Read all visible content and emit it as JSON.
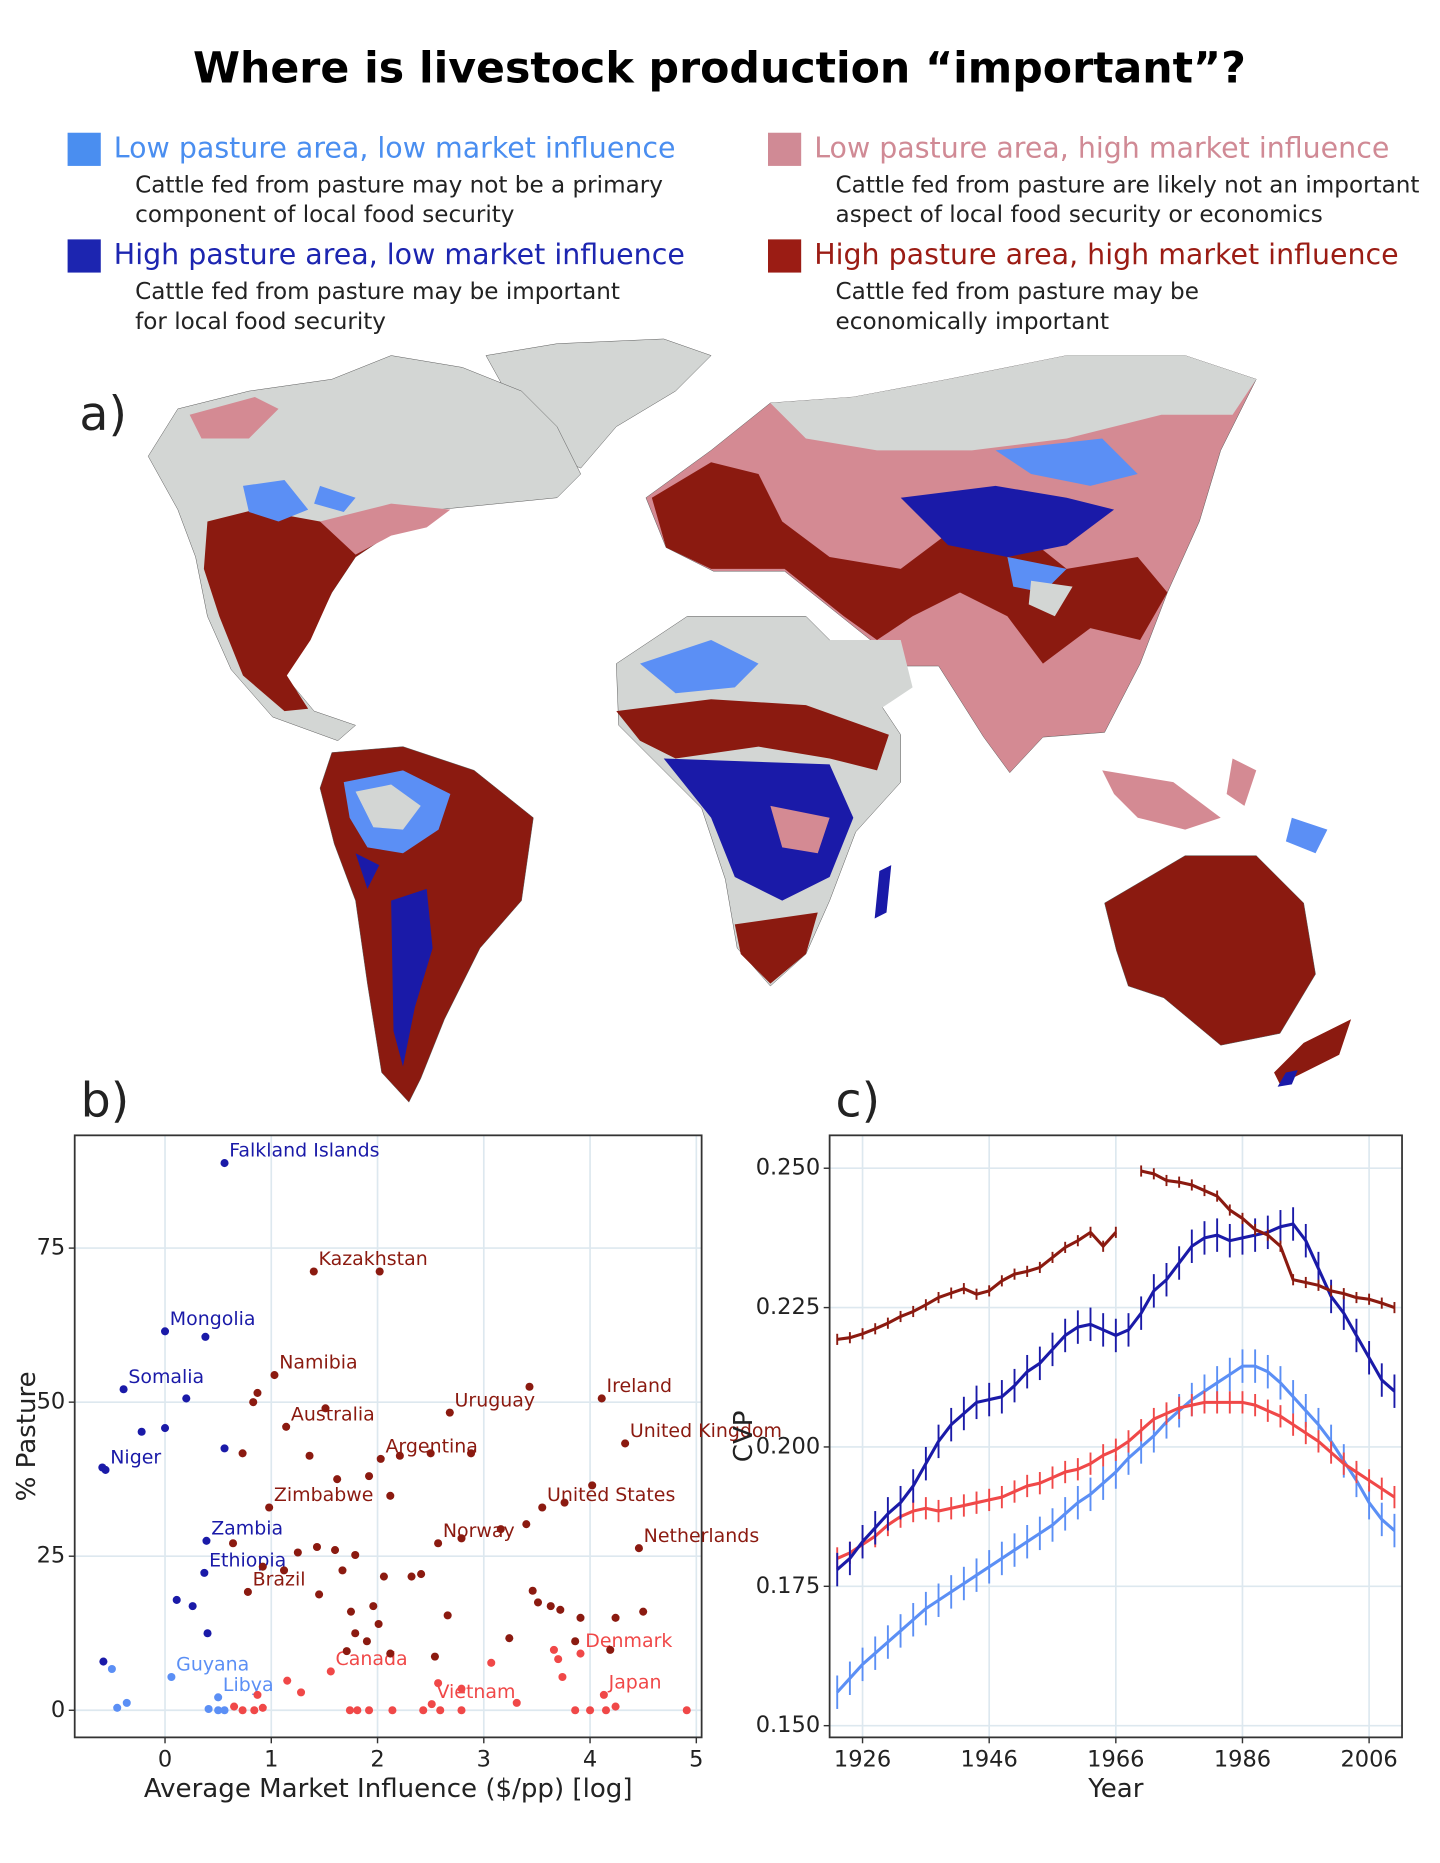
{
  "title": "Where is livestock production “important”?",
  "legend": [
    {
      "label": "Low pasture area, low market influence",
      "color": "#4a8ef0",
      "description": [
        "Cattle fed from pasture may not be a primary",
        "component of local food security"
      ]
    },
    {
      "label": "Low pasture area, high market influence",
      "color": "#d08a95",
      "description": [
        "Cattle fed from pasture are likely not an important",
        "aspect of local food security or economics"
      ]
    },
    {
      "label": "High pasture area, low market influence",
      "color": "#1c25b0",
      "description": [
        "Cattle fed from pasture may be important",
        "for local food security"
      ]
    },
    {
      "label": "High pasture area, high market influence",
      "color": "#9b1c14",
      "description": [
        "Cattle fed from pasture may be",
        "economically important"
      ]
    }
  ],
  "map": {
    "panel_label": "a)"
  },
  "chart_data": [
    {
      "type": "scatter",
      "panel_label": "b)",
      "xlabel": "Average Market Influence ($/pp) [log]",
      "ylabel": "% Pasture",
      "xlim": [
        -0.85,
        5.05
      ],
      "ylim": [
        -4.4,
        93.3
      ],
      "xticks": [
        0,
        1,
        2,
        3,
        4,
        5
      ],
      "yticks": [
        0,
        25,
        50,
        75
      ],
      "grid": true,
      "series": [
        {
          "color": "#5b8ff5",
          "x": [
            -0.5,
            -0.45,
            -0.36,
            0.06,
            0.5,
            0.41,
            0.5,
            0.56
          ],
          "values": [
            6.7,
            0.4,
            1.2,
            5.4,
            2.1,
            0.2,
            0,
            0
          ],
          "labels": [
            null,
            null,
            null,
            "Guyana",
            "Libya",
            null,
            null,
            null
          ]
        },
        {
          "color": "#1a1aa8",
          "x": [
            0.56,
            0,
            0.38,
            -0.39,
            0.2,
            -0.22,
            0,
            0.56,
            -0.59,
            -0.56,
            0.39,
            0.37,
            0.11,
            0.26,
            0.4,
            -0.58
          ],
          "values": [
            88.8,
            61.5,
            60.6,
            52.1,
            50.6,
            45.2,
            45.8,
            42.5,
            39.4,
            39.0,
            27.5,
            22.3,
            17.9,
            16.9,
            12.5,
            7.9
          ],
          "labels": [
            "Falkland Islands",
            "Mongolia",
            null,
            "Somalia",
            null,
            null,
            null,
            null,
            null,
            "Niger",
            "Zambia",
            "Ethiopia",
            null,
            null,
            null,
            null
          ]
        },
        {
          "color": "#f04848",
          "x": [
            1.56,
            3.91,
            4.13,
            2.51,
            0.65,
            0.73,
            0.84,
            0.92,
            0.87,
            1.15,
            1.28,
            1.74,
            1.81,
            1.92,
            2.14,
            2.43,
            2.59,
            2.79,
            2.57,
            2.79,
            3.07,
            3.31,
            3.66,
            3.74,
            3.86,
            4,
            4.15,
            4.24,
            4.91,
            3.7
          ],
          "values": [
            6.3,
            9.2,
            2.5,
            1.0,
            0.6,
            0,
            0,
            0.4,
            2.5,
            4.8,
            2.9,
            0,
            0,
            0,
            0,
            0,
            0,
            0,
            4.4,
            3.5,
            7.7,
            1.2,
            9.8,
            5.4,
            0,
            0,
            0,
            0.6,
            0,
            8.3
          ],
          "labels": [
            "Canada",
            "Denmark",
            "Japan",
            "Vietnam",
            null,
            null,
            null,
            null,
            null,
            null,
            null,
            null,
            null,
            null,
            null,
            null,
            null,
            null,
            null,
            null,
            null,
            null,
            null,
            null,
            null,
            null,
            null,
            null,
            null,
            null
          ]
        },
        {
          "color": "#8b1a10",
          "x": [
            1.4,
            2.02,
            1.03,
            1.14,
            2.68,
            4.11,
            2.03,
            4.33,
            0.98,
            3.55,
            2.57,
            4.46,
            0.78,
            3.43,
            1.51,
            0.87,
            0.83,
            0.73,
            1.36,
            1.62,
            1.92,
            2.21,
            2.5,
            2.88,
            2.12,
            3.76,
            4.02,
            3.16,
            2.79,
            3.4,
            0.64,
            1.25,
            1.43,
            1.6,
            1.79,
            0.92,
            1.12,
            1.67,
            2.06,
            2.32,
            2.41,
            3.46,
            3.51,
            3.63,
            3.72,
            3.91,
            4.24,
            4.5,
            1.45,
            1.75,
            1.96,
            2.01,
            2.66,
            1.79,
            1.71,
            1.9,
            2.12,
            2.54,
            3.24,
            4.19,
            3.86
          ],
          "values": [
            71.2,
            71.2,
            54.4,
            46.0,
            48.3,
            50.6,
            40.8,
            43.3,
            32.9,
            32.9,
            27.1,
            26.3,
            19.2,
            52.5,
            49,
            51.5,
            50,
            41.7,
            41.3,
            37.5,
            38,
            41.3,
            41.7,
            41.7,
            34.8,
            33.7,
            36.5,
            29.4,
            27.9,
            30.2,
            27.1,
            25.6,
            26.5,
            26,
            25.2,
            23.3,
            22.7,
            22.7,
            21.7,
            21.7,
            22.1,
            19.4,
            17.5,
            16.9,
            16.3,
            15,
            15,
            16,
            18.8,
            16,
            16.9,
            14,
            15.4,
            12.5,
            9.6,
            11.2,
            9.2,
            8.7,
            11.7,
            9.8,
            11.2
          ],
          "labels": [
            "Kazakhstan",
            null,
            "Namibia",
            "Australia",
            "Uruguay",
            "Ireland",
            "Argentina",
            "United Kingdom",
            "Zimbabwe",
            "United States",
            "Norway",
            "Netherlands",
            "Brazil",
            null,
            null,
            null,
            null,
            null,
            null,
            null,
            null,
            null,
            null,
            null,
            null,
            null,
            null,
            null,
            null,
            null,
            null,
            null,
            null,
            null,
            null,
            null,
            null,
            null,
            null,
            null,
            null,
            null,
            null,
            null,
            null,
            null,
            null,
            null,
            null,
            null,
            null,
            null,
            null,
            null,
            null,
            null,
            null,
            null,
            null,
            null,
            null
          ]
        }
      ]
    },
    {
      "type": "line",
      "panel_label": "c)",
      "xlabel": "Year",
      "ylabel": "CVP",
      "x": [
        1922,
        1924,
        1926,
        1928,
        1930,
        1932,
        1934,
        1936,
        1938,
        1940,
        1942,
        1944,
        1946,
        1948,
        1950,
        1952,
        1954,
        1956,
        1958,
        1960,
        1962,
        1964,
        1966,
        1968,
        1970,
        1972,
        1974,
        1976,
        1978,
        1980,
        1982,
        1984,
        1986,
        1988,
        1990,
        1992,
        1994,
        1996,
        1998,
        2000,
        2002,
        2004,
        2006,
        2008,
        2010
      ],
      "xlim": [
        1920.8,
        2011.2
      ],
      "ylim": [
        0.1479,
        0.2559
      ],
      "xticks": [
        1926,
        1946,
        1966,
        1986,
        2006
      ],
      "yticks": [
        {
          "value": 0.15,
          "label": "0.150"
        },
        {
          "value": 0.175,
          "label": "0.175"
        },
        {
          "value": 0.2,
          "label": "0.200"
        },
        {
          "value": 0.225,
          "label": "0.225"
        },
        {
          "value": 0.25,
          "label": "0.250"
        }
      ],
      "grid": true,
      "series": [
        {
          "color": "#5b8ff5",
          "error": 0.003,
          "values": [
            0.156,
            0.1585,
            0.161,
            0.163,
            0.165,
            0.167,
            0.169,
            0.171,
            0.1725,
            0.174,
            0.1755,
            0.177,
            0.1785,
            0.18,
            0.1815,
            0.183,
            0.1845,
            0.186,
            0.188,
            0.19,
            0.1915,
            0.1935,
            0.1955,
            0.198,
            0.2,
            0.202,
            0.2045,
            0.2065,
            0.2085,
            0.21,
            0.2115,
            0.213,
            0.2145,
            0.2145,
            0.2135,
            0.2115,
            0.209,
            0.2065,
            0.204,
            0.201,
            0.1975,
            0.194,
            0.19,
            0.187,
            0.185
          ]
        },
        {
          "color": "#f04848",
          "error": 0.002,
          "values": [
            0.18,
            0.181,
            0.1825,
            0.184,
            0.186,
            0.1875,
            0.1885,
            0.189,
            0.1885,
            0.189,
            0.1895,
            0.19,
            0.1905,
            0.191,
            0.192,
            0.193,
            0.1935,
            0.1945,
            0.1955,
            0.196,
            0.197,
            0.1985,
            0.1995,
            0.201,
            0.203,
            0.205,
            0.206,
            0.207,
            0.2075,
            0.208,
            0.208,
            0.208,
            0.208,
            0.2075,
            0.2065,
            0.2055,
            0.204,
            0.2025,
            0.201,
            0.199,
            0.197,
            0.1955,
            0.194,
            0.1925,
            0.191
          ]
        },
        {
          "color": "#1a1aa8",
          "error": 0.003,
          "values": [
            0.178,
            0.18,
            0.183,
            0.1855,
            0.188,
            0.19,
            0.193,
            0.197,
            0.201,
            0.204,
            0.206,
            0.208,
            0.2085,
            0.209,
            0.211,
            0.2135,
            0.215,
            0.2175,
            0.22,
            0.2215,
            0.222,
            0.221,
            0.22,
            0.221,
            0.224,
            0.228,
            0.23,
            0.233,
            0.236,
            0.2375,
            0.238,
            0.237,
            0.2375,
            0.238,
            0.2385,
            0.2395,
            0.24,
            0.237,
            0.232,
            0.227,
            0.224,
            0.22,
            0.216,
            0.212,
            0.21
          ]
        },
        {
          "color": "#8b1a10",
          "error": 0.001,
          "values": [
            0.2193,
            0.2196,
            0.2203,
            0.2212,
            0.2222,
            0.2234,
            0.2243,
            0.2255,
            0.2268,
            0.2276,
            0.2284,
            0.2274,
            0.228,
            0.2298,
            0.231,
            0.2315,
            0.2322,
            0.234,
            0.2358,
            0.237,
            0.2385,
            0.236,
            0.2385,
            null,
            0.2495,
            0.249,
            0.2478,
            0.2475,
            0.247,
            0.246,
            0.245,
            0.2425,
            0.241,
            0.239,
            0.238,
            0.236,
            0.23,
            0.2295,
            0.229,
            0.228,
            0.2275,
            0.2268,
            0.2265,
            0.2258,
            0.225
          ]
        }
      ]
    }
  ]
}
